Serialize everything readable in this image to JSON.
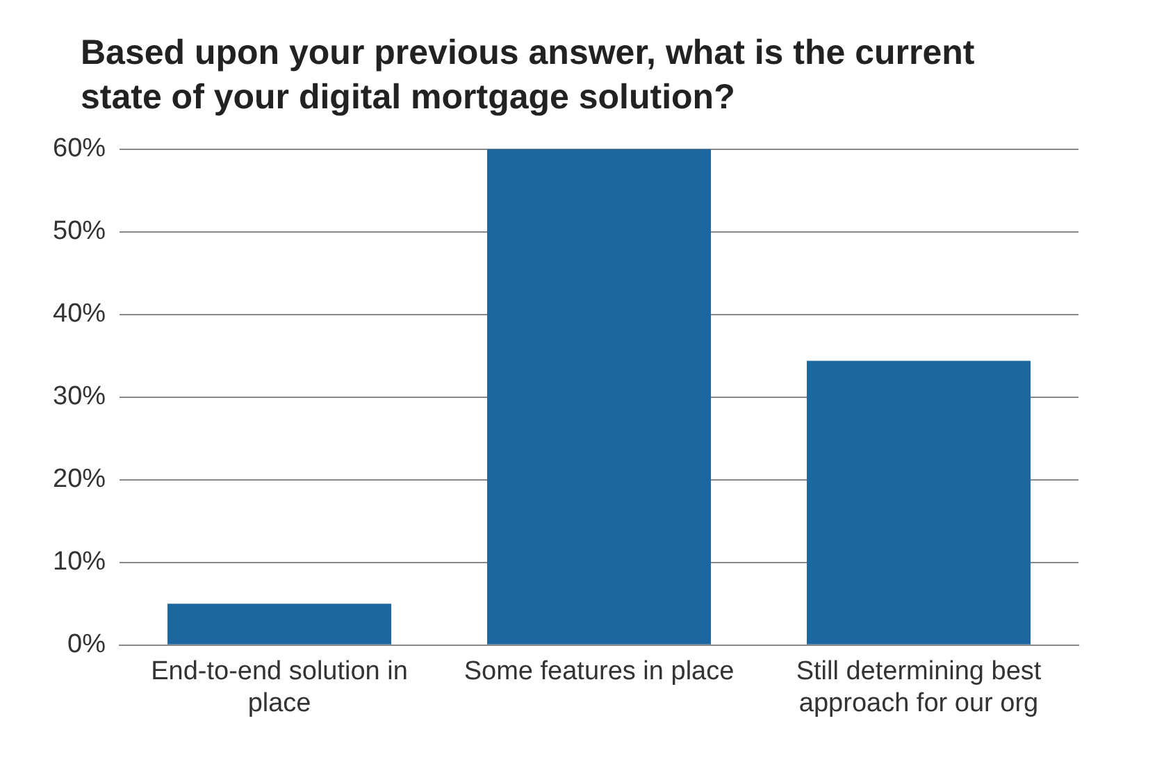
{
  "chart_data": {
    "type": "bar",
    "title": "Based upon your previous answer, what is the current state of your digital mortgage solution?",
    "categories": [
      "End-to-end solution in place",
      "Some features in place",
      "Still determining best approach for our org"
    ],
    "values": [
      5,
      60,
      34.4
    ],
    "color": "#1c67a0",
    "ylim": [
      0,
      60
    ],
    "yticks": [
      {
        "value": 0,
        "label": "0%"
      },
      {
        "value": 10,
        "label": "10%"
      },
      {
        "value": 20,
        "label": "20%"
      },
      {
        "value": 30,
        "label": "30%"
      },
      {
        "value": 40,
        "label": "40%"
      },
      {
        "value": 50,
        "label": "50%"
      },
      {
        "value": 60,
        "label": "60%"
      }
    ],
    "grid": "y"
  }
}
